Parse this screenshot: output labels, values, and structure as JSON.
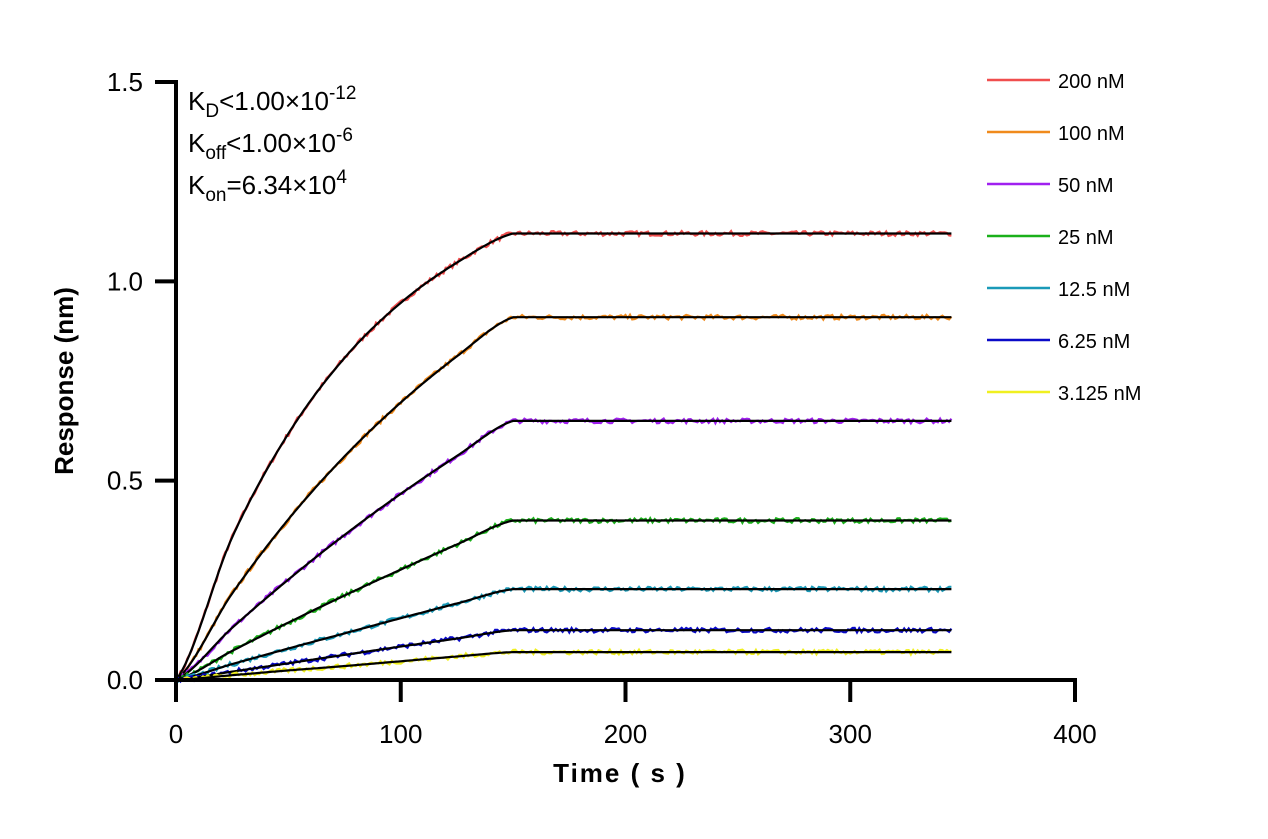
{
  "chart_data": {
    "type": "line",
    "title": "",
    "xlabel": "Time ( s )",
    "ylabel": "Response (nm)",
    "xlim": [
      0,
      400
    ],
    "ylim": [
      0,
      1.5
    ],
    "xticks": [
      "0",
      "100",
      "200",
      "300",
      "400"
    ],
    "yticks": [
      "0.0",
      "0.5",
      "1.0",
      "1.5"
    ],
    "grid": false,
    "legend_position": "top-right",
    "annotations": [
      {
        "main": "K",
        "sub": "D",
        "text": "<1.00×10",
        "sup": "-12"
      },
      {
        "main": "K",
        "sub": "off",
        "text": "<1.00×10",
        "sup": "-6"
      },
      {
        "main": "K",
        "sub": "on",
        "text": "=6.34×10",
        "sup": "4"
      }
    ],
    "fit_color": "#000000",
    "x": [
      0,
      25,
      50,
      75,
      100,
      125,
      150,
      200,
      250,
      300,
      345
    ],
    "series": [
      {
        "name": "200 nM",
        "color": "#f04e4e",
        "values": [
          0,
          0.358,
          0.618,
          0.808,
          0.946,
          1.047,
          1.12,
          1.12,
          1.12,
          1.12,
          1.12
        ]
      },
      {
        "name": "100 nM",
        "color": "#f08a1c",
        "values": [
          0,
          0.217,
          0.403,
          0.561,
          0.696,
          0.812,
          0.91,
          0.91,
          0.91,
          0.91,
          0.91
        ]
      },
      {
        "name": "50 nM",
        "color": "#a020f0",
        "values": [
          0,
          0.131,
          0.252,
          0.364,
          0.467,
          0.562,
          0.65,
          0.65,
          0.65,
          0.65,
          0.65
        ]
      },
      {
        "name": "25 nM",
        "color": "#1ab01a",
        "values": [
          0,
          0.073,
          0.144,
          0.212,
          0.277,
          0.34,
          0.4,
          0.4,
          0.4,
          0.4,
          0.4
        ]
      },
      {
        "name": "12.5 nM",
        "color": "#1a9ab8",
        "values": [
          0,
          0.04,
          0.079,
          0.117,
          0.155,
          0.192,
          0.228,
          0.228,
          0.228,
          0.228,
          0.228
        ]
      },
      {
        "name": "6.25 nM",
        "color": "#0a0ac8",
        "values": [
          0,
          0.021,
          0.042,
          0.063,
          0.084,
          0.104,
          0.125,
          0.125,
          0.125,
          0.125,
          0.125
        ]
      },
      {
        "name": "3.125 nM",
        "color": "#f0f020",
        "values": [
          0,
          0.012,
          0.024,
          0.035,
          0.047,
          0.059,
          0.07,
          0.07,
          0.07,
          0.07,
          0.07
        ]
      }
    ]
  }
}
